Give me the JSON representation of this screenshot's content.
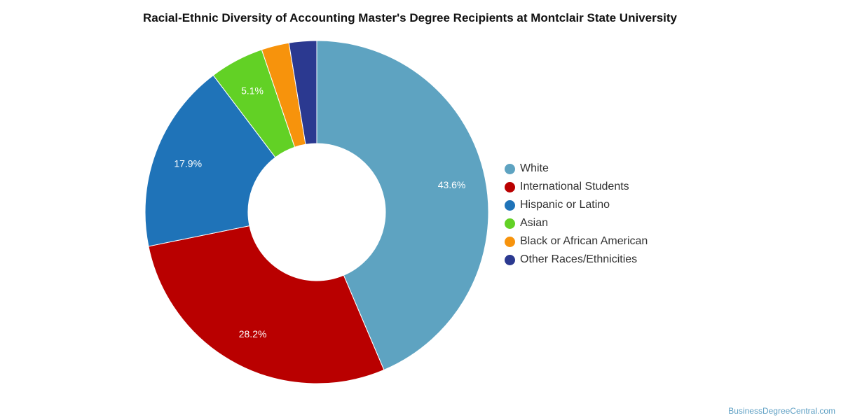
{
  "chart_data": {
    "type": "pie",
    "title": "Racial-Ethnic Diversity of Accounting Master's Degree Recipients at Montclair State University",
    "slices": [
      {
        "label": "White",
        "value": 43.6,
        "value_label": "43.6%",
        "color": "#5ea3c1"
      },
      {
        "label": "International Students",
        "value": 28.2,
        "value_label": "28.2%",
        "color": "#b90000"
      },
      {
        "label": "Hispanic or Latino",
        "value": 17.9,
        "value_label": "17.9%",
        "color": "#1f73b8"
      },
      {
        "label": "Asian",
        "value": 5.1,
        "value_label": "5.1%",
        "color": "#62d125"
      },
      {
        "label": "Black or African American",
        "value": 2.6,
        "value_label": "",
        "color": "#f7930c"
      },
      {
        "label": "Other Races/Ethnicities",
        "value": 2.6,
        "value_label": "",
        "color": "#2b3990"
      }
    ],
    "donut": true,
    "legend_position": "right"
  },
  "footer": {
    "source": "BusinessDegreeCentral.com"
  }
}
